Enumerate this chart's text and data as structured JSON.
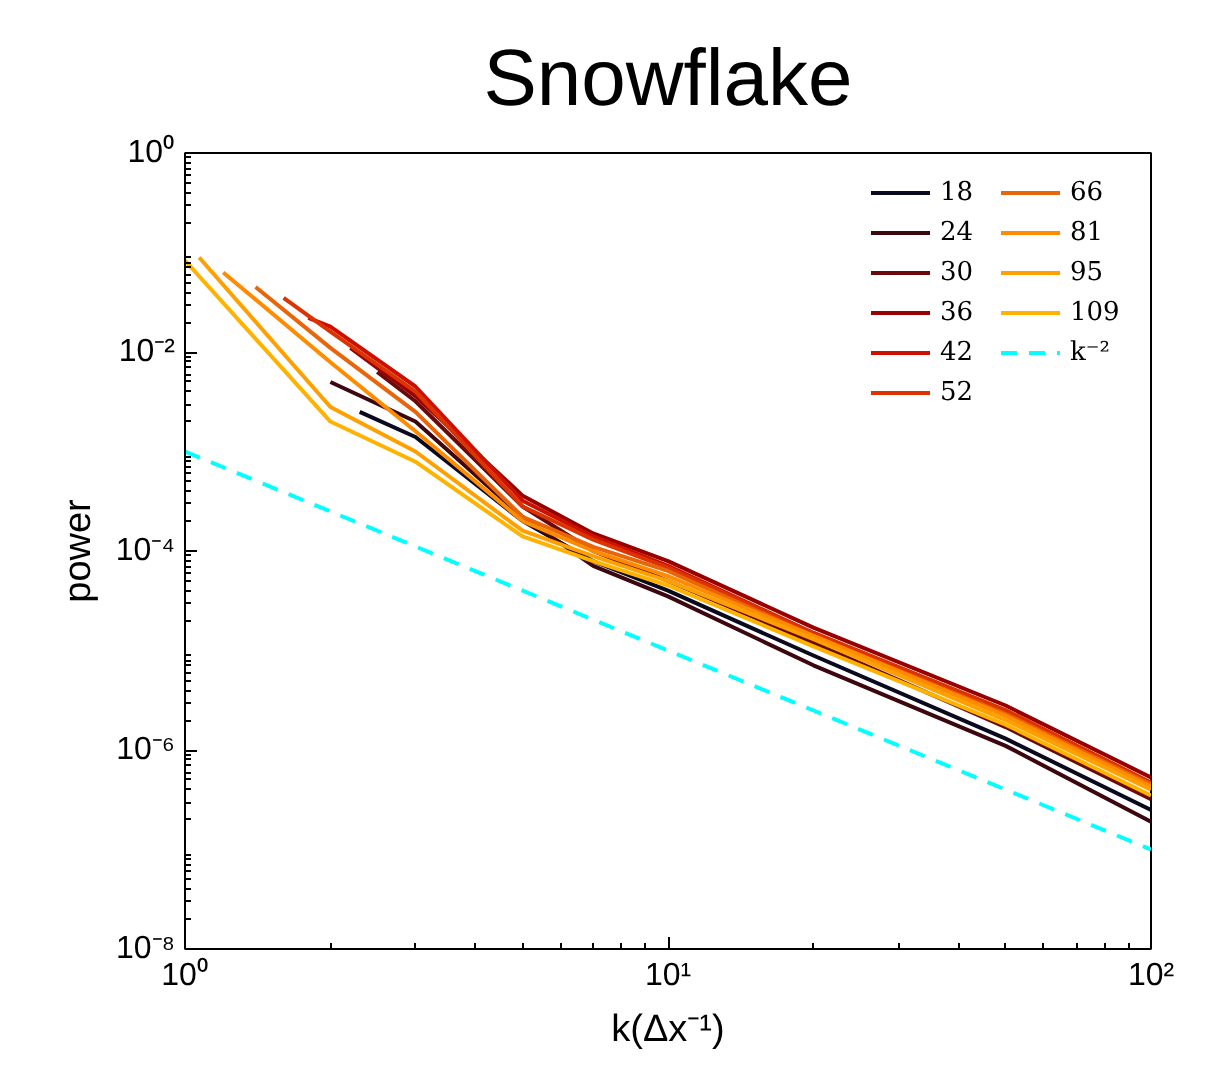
{
  "chart_data": {
    "type": "line",
    "title": "Snowflake",
    "xlabel": "k(Δx⁻¹)",
    "ylabel": "power",
    "log": "xy",
    "grid": false,
    "legend": "top right",
    "line_style": "solid",
    "marker": "none",
    "xlim": [
      1,
      100
    ],
    "ylim": [
      1e-08,
      1
    ],
    "xticks": [
      {
        "value": 1,
        "label": "10⁰"
      },
      {
        "value": 10,
        "label": "10¹"
      },
      {
        "value": 100,
        "label": "10²"
      }
    ],
    "yticks": [
      {
        "value": 1e-08,
        "label": "10⁻⁸"
      },
      {
        "value": 1e-06,
        "label": "10⁻⁶"
      },
      {
        "value": 0.0001,
        "label": "10⁻⁴"
      },
      {
        "value": 0.01,
        "label": "10⁻²"
      },
      {
        "value": 1,
        "label": "10⁰"
      }
    ],
    "series": [
      {
        "name": "18",
        "color": "#0a0a1e",
        "x": [
          2.3,
          3,
          5,
          7,
          10,
          20,
          50,
          100
        ],
        "values": [
          0.0025,
          0.0014,
          0.0002,
          7.9e-05,
          4e-05,
          8.9e-06,
          1.3e-06,
          2.5e-07
        ]
      },
      {
        "name": "24",
        "color": "#3d0710",
        "x": [
          2,
          3,
          5,
          7,
          10,
          20,
          50,
          100
        ],
        "values": [
          0.005,
          0.002,
          0.00022,
          7.1e-05,
          3.5e-05,
          7.1e-06,
          1.1e-06,
          1.9e-07
        ]
      },
      {
        "name": "30",
        "color": "#6b0a0a",
        "x": [
          2.5,
          3,
          5,
          7,
          10,
          20,
          50,
          100
        ],
        "values": [
          0.0063,
          0.0032,
          0.00028,
          0.0001,
          5e-05,
          1.2e-05,
          1.7e-06,
          3.2e-07
        ]
      },
      {
        "name": "36",
        "color": "#990000",
        "x": [
          2.2,
          3,
          5,
          7,
          10,
          20,
          50,
          100
        ],
        "values": [
          0.011,
          0.0036,
          0.00036,
          0.00015,
          7.9e-05,
          1.7e-05,
          2.8e-06,
          5.3e-07
        ]
      },
      {
        "name": "42",
        "color": "#cc1100",
        "x": [
          1.8,
          2,
          3,
          5,
          7,
          10,
          20,
          50,
          100
        ],
        "values": [
          0.022,
          0.018,
          0.0045,
          0.00032,
          0.00014,
          7.1e-05,
          1.5e-05,
          2.5e-06,
          4.7e-07
        ]
      },
      {
        "name": "52",
        "color": "#dd3300",
        "x": [
          1.6,
          2,
          3,
          5,
          7,
          10,
          20,
          50,
          100
        ],
        "values": [
          0.035,
          0.016,
          0.004,
          0.00028,
          0.00013,
          6.8e-05,
          1.5e-05,
          2.5e-06,
          4.7e-07
        ]
      },
      {
        "name": "66",
        "color": "#e8650a",
        "x": [
          1.4,
          2,
          3,
          5,
          7,
          10,
          20,
          50,
          100
        ],
        "values": [
          0.045,
          0.011,
          0.0025,
          0.00022,
          0.00011,
          6.3e-05,
          1.4e-05,
          2.3e-06,
          4.5e-07
        ]
      },
      {
        "name": "81",
        "color": "#ff8c00",
        "x": [
          1.2,
          2,
          3,
          5,
          7,
          10,
          20,
          50,
          100
        ],
        "values": [
          0.063,
          0.0079,
          0.0016,
          0.0002,
          0.0001,
          5.6e-05,
          1.4e-05,
          2.2e-06,
          4.3e-07
        ]
      },
      {
        "name": "95",
        "color": "#ffa000",
        "x": [
          1.07,
          2,
          3,
          5,
          7,
          10,
          20,
          50,
          100
        ],
        "values": [
          0.089,
          0.0028,
          0.001,
          0.00016,
          8.9e-05,
          5e-05,
          1.3e-05,
          2e-06,
          4e-07
        ]
      },
      {
        "name": "109",
        "color": "#ffb300",
        "x": [
          1,
          2,
          3,
          5,
          7,
          10,
          20,
          50,
          100
        ],
        "values": [
          0.083,
          0.002,
          0.00079,
          0.00014,
          7.9e-05,
          4.5e-05,
          1.1e-05,
          1.8e-06,
          3.5e-07
        ]
      },
      {
        "name": "k⁻²",
        "color": "#00ffff",
        "line_style": "dashed",
        "x": [
          1,
          100
        ],
        "values": [
          0.001,
          1e-07
        ]
      }
    ]
  }
}
